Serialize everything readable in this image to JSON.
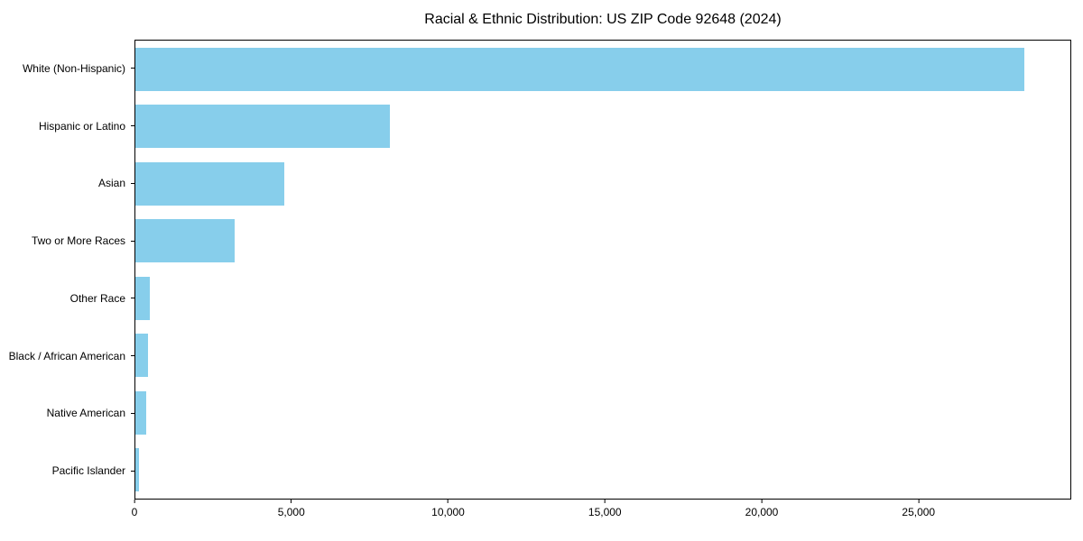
{
  "title": "Racial & Ethnic Distribution: US ZIP Code 92648 (2024)",
  "chart_data": {
    "type": "bar",
    "orientation": "horizontal",
    "title": "Racial & Ethnic Distribution: US ZIP Code 92648 (2024)",
    "xlabel": "",
    "ylabel": "",
    "categories": [
      "White (Non-Hispanic)",
      "Hispanic or Latino",
      "Asian",
      "Two or More Races",
      "Other Race",
      "Black / African American",
      "Native American",
      "Pacific Islander"
    ],
    "values": [
      28400,
      8140,
      4750,
      3170,
      450,
      400,
      340,
      120
    ],
    "xlim": [
      0,
      29870
    ],
    "xticks": [
      0,
      5000,
      10000,
      15000,
      20000,
      25000
    ],
    "xtick_labels": [
      "0",
      "5,000",
      "10,000",
      "15,000",
      "20,000",
      "25,000"
    ],
    "bar_color": "#87CEEB",
    "axis_color": "#000000",
    "background_color": "#ffffff",
    "grid": false,
    "legend": null
  }
}
